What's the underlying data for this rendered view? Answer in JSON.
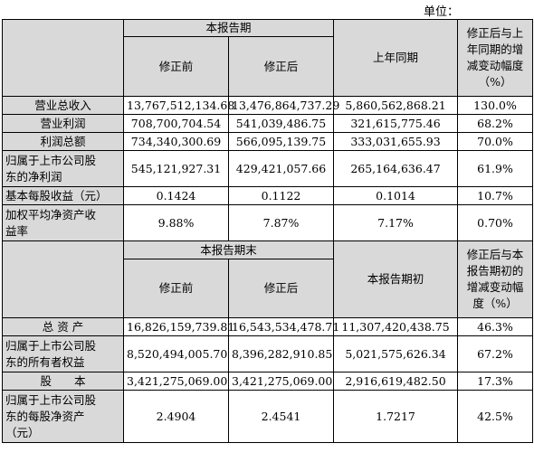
{
  "unit_label": "单位：",
  "section1": {
    "period_header": "本报告期",
    "col_before": "修正前",
    "col_after": "修正后",
    "col_prior": "上年同期",
    "col_change_lines": [
      "修正后与上",
      "年同期的增",
      "减变动幅度",
      "（%）"
    ],
    "rows": [
      {
        "label": [
          "营业总收入"
        ],
        "before": "13,767,512,134.68",
        "after": "13,476,864,737.29",
        "prior": "5,860,562,868.21",
        "change": "130.0%"
      },
      {
        "label": [
          "营业利润"
        ],
        "before": "708,700,704.54",
        "after": "541,039,486.75",
        "prior": "321,615,775.46",
        "change": "68.2%"
      },
      {
        "label": [
          "利润总额"
        ],
        "before": "734,340,300.69",
        "after": "566,095,139.75",
        "prior": "333,031,655.93",
        "change": "70.0%"
      },
      {
        "label": [
          "归属于上市公司股",
          "东的净利润"
        ],
        "before": "545,121,927.31",
        "after": "429,421,057.66",
        "prior": "265,164,636.47",
        "change": "61.9%"
      },
      {
        "label": [
          "基本每股收益（元）"
        ],
        "before": "0.1424",
        "after": "0.1122",
        "prior": "0.1014",
        "change": "10.7%"
      },
      {
        "label": [
          "加权平均净资产收",
          "益率"
        ],
        "before": "9.88%",
        "after": "7.87%",
        "prior": "7.17%",
        "change": "0.70%"
      }
    ]
  },
  "section2": {
    "period_header": "本报告期末",
    "col_before": "修正前",
    "col_after": "修正后",
    "col_prior": "本报告期初",
    "col_change_lines": [
      "修正后与本",
      "报告期初的",
      "增减变动幅",
      "度（%）"
    ],
    "rows": [
      {
        "label": [
          "总 资 产"
        ],
        "before": "16,826,159,739.81",
        "after": "16,543,534,478.71",
        "prior": "11,307,420,438.75",
        "change": "46.3%"
      },
      {
        "label": [
          "归属于上市公司股",
          "东的所有者权益"
        ],
        "before": "8,520,494,005.70",
        "after": "8,396,282,910.85",
        "prior": "5,021,575,626.34",
        "change": "67.2%"
      },
      {
        "label": [
          "股　　本"
        ],
        "before": "3,421,275,069.00",
        "after": "3,421,275,069.00",
        "prior": "2,916,619,482.50",
        "change": "17.3%"
      },
      {
        "label": [
          "归属于上市公司股",
          "东的每股净资产",
          "（元）"
        ],
        "before": "2.4904",
        "after": "2.4541",
        "prior": "1.7217",
        "change": "42.5%"
      }
    ]
  }
}
